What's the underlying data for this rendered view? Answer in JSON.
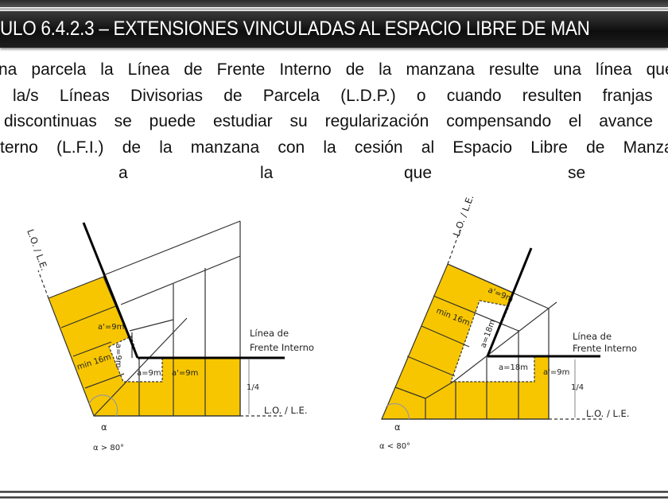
{
  "header": {
    "title": "ULO 6.4.2.3 – EXTENSIONES VINCULADAS AL ESPACIO LIBRE DE MAN"
  },
  "body": {
    "lines": [
      "na parcela la Línea de Frente Interno de la manzana resulte una línea quebra",
      "la/s Líneas Divisorias de Parcela (L.D.P.) o cuando resulten franjas cor",
      "discontinuas se puede estudiar su regularización compensando el avance so",
      "terno (L.F.I.) de la manzana con la cesión al Espacio Libre de Manzana",
      [
        "a",
        "la",
        "que",
        "se"
      ]
    ]
  },
  "diagram_left": {
    "lo_le_side": "L.O. / L.E.",
    "a_prime_top": "a'=9m",
    "a_rot": "a=9m",
    "min": "min 16m",
    "a_bottom": "a=9m",
    "a_prime_bottom": "a'=9m",
    "lfi_1": "Línea de",
    "lfi_2": "Frente Interno",
    "quarter": "1/4",
    "lo_le_bottom": "L.O. / L.E.",
    "alpha": "α",
    "condition": "α > 80°"
  },
  "diagram_right": {
    "lo_le_side": "L.O. / L.E.",
    "a_prime_top": "a'=9m",
    "min": "min 16m",
    "a_rot": "a=18m",
    "a_bottom": "a=18m",
    "a_prime_bottom": "a'=9m",
    "lfi_1": "Línea de",
    "lfi_2": "Frente Interno",
    "quarter": "1/4",
    "lo_le_bottom": "L.O. / L.E.",
    "alpha": "α",
    "condition": "α < 80°"
  },
  "colors": {
    "fill": "#f7c600",
    "title_bg": "#111111",
    "title_text": "#ffffff"
  }
}
